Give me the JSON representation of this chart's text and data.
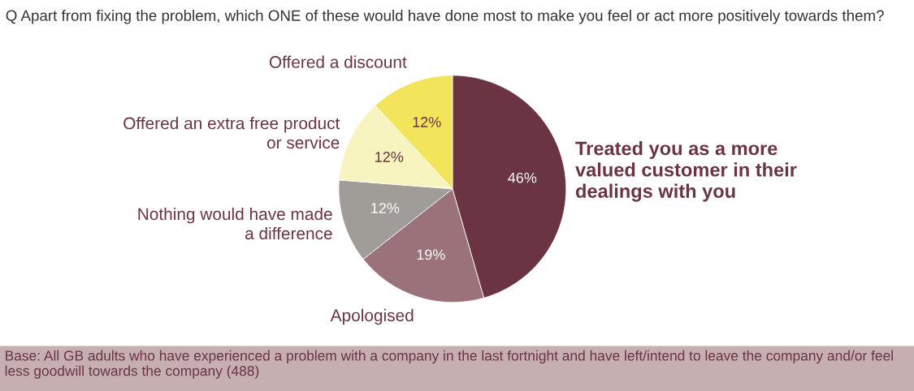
{
  "chart_data": {
    "type": "pie",
    "title": "Q Apart from fixing the problem, which ONE of these would have done most to make you feel or act more positively towards them?",
    "categories": [
      "Treated you as a more\nvalued customer in their\ndealings with you",
      "Apologised",
      "Nothing would have made\na difference",
      "Offered an extra free product\nor service",
      "Offered a discount"
    ],
    "values": [
      46,
      19,
      12,
      12,
      12
    ],
    "value_labels": [
      "46%",
      "19%",
      "12%",
      "12%",
      "12%"
    ],
    "colors": [
      "#6a3442",
      "#9b727a",
      "#a09c97",
      "#f8f4c0",
      "#f2e55c"
    ],
    "annotations": [
      "Base: All GB adults who have experienced a problem with a company in the last fortnight and have left/intend to leave the company and/or feel less goodwill towards the company (488)"
    ],
    "legend": false
  }
}
